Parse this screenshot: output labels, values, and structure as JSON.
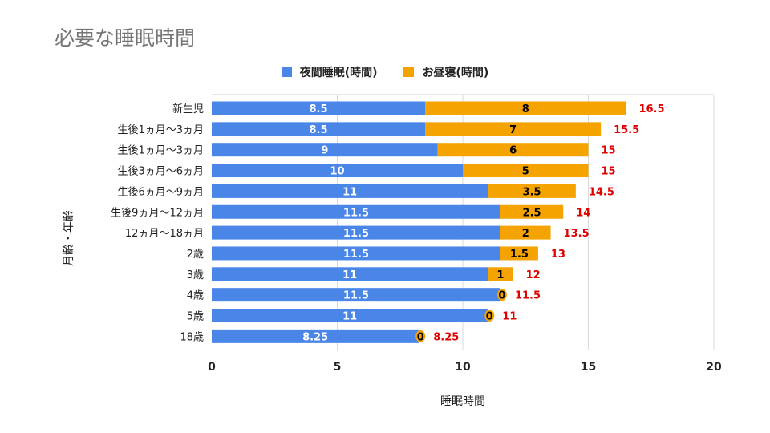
{
  "chart_data": {
    "type": "bar",
    "orientation": "horizontal",
    "stacked": true,
    "title": "必要な睡眠時間",
    "xlabel": "睡眠時間",
    "ylabel": "月齢・年齢",
    "xlim": [
      0,
      20
    ],
    "xticks": [
      0,
      5,
      10,
      15,
      20
    ],
    "grid": true,
    "legend_position": "top",
    "categories": [
      "新生児",
      "生後1ヵ月〜3ヵ月",
      "生後1ヵ月〜3ヵ月",
      "生後3ヵ月〜6ヵ月",
      "生後6ヵ月〜9ヵ月",
      "生後9ヵ月〜12ヵ月",
      "12ヵ月〜18ヵ月",
      "2歳",
      "3歳",
      "4歳",
      "5歳",
      "18歳"
    ],
    "series": [
      {
        "name": "夜間睡眠(時間)",
        "color": "#4a86e8",
        "values": [
          8.5,
          8.5,
          9,
          10,
          11,
          11.5,
          11.5,
          11.5,
          11,
          11.5,
          11,
          8.25
        ]
      },
      {
        "name": "お昼寝(時間)",
        "color": "#f4a300",
        "values": [
          8,
          7,
          6,
          5,
          3.5,
          2.5,
          2,
          1.5,
          1,
          0,
          0,
          0
        ]
      }
    ],
    "totals": [
      16.5,
      15.5,
      15,
      15,
      14.5,
      14,
      13.5,
      13,
      12,
      11.5,
      11,
      8.25
    ],
    "total_label_color": "#e00000"
  }
}
